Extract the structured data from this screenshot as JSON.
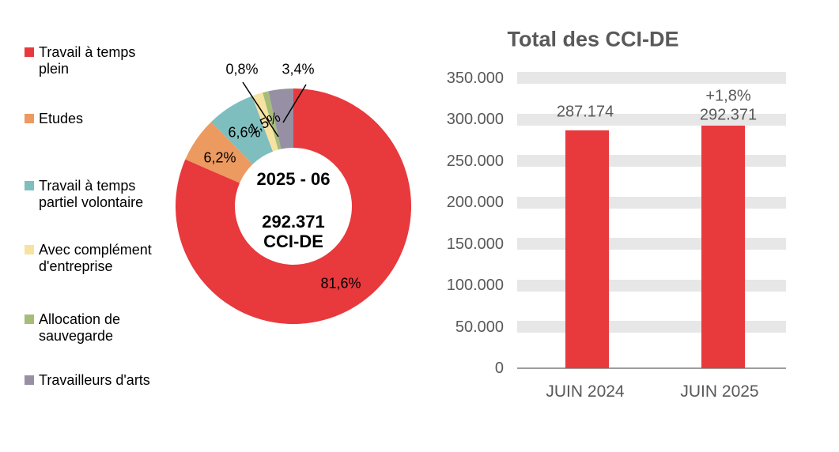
{
  "page": {
    "background": "#FFFFFF"
  },
  "chart_data": [
    {
      "type": "donut",
      "period_label": "2025 - 06",
      "total_label": "292.371",
      "unit_label": "CCI-DE",
      "legend_position": "left",
      "slices": [
        {
          "name": "Travail à temps plein",
          "value": 81.6,
          "label": "81,6%",
          "color": "#E8393D"
        },
        {
          "name": "Etudes",
          "value": 6.2,
          "label": "6,2%",
          "color": "#EC9A60"
        },
        {
          "name": "Travail à temps partiel volontaire",
          "value": 6.6,
          "label": "6,6%",
          "color": "#7FBEBF"
        },
        {
          "name": "Avec complément d'entreprise",
          "value": 1.5,
          "label": "1,5%",
          "color": "#F6E3A2"
        },
        {
          "name": "Allocation de sauvegarde",
          "value": 0.8,
          "label": "0,8%",
          "color": "#A5BD79"
        },
        {
          "name": "Travailleurs d'arts",
          "value": 3.4,
          "label": "3,4%",
          "color": "#9790A5"
        }
      ]
    },
    {
      "type": "bar",
      "title": "Total des CCI-DE",
      "categories": [
        "JUIN 2024",
        "JUIN 2025"
      ],
      "values": [
        287174,
        292371
      ],
      "value_labels": [
        "287.174",
        "292.371"
      ],
      "delta_label": "+1,8%",
      "ylim": [
        0,
        350000
      ],
      "ytick_step": 50000,
      "ytick_labels": [
        "0",
        "50.000",
        "100.000",
        "150.000",
        "200.000",
        "250.000",
        "300.000",
        "350.000"
      ],
      "grid": "on",
      "legend": "none",
      "bar_color": "#E8393D",
      "gridline_color": "#E7E7E7",
      "axis_color": "#9E9E9E",
      "text_color": "#595959"
    }
  ]
}
